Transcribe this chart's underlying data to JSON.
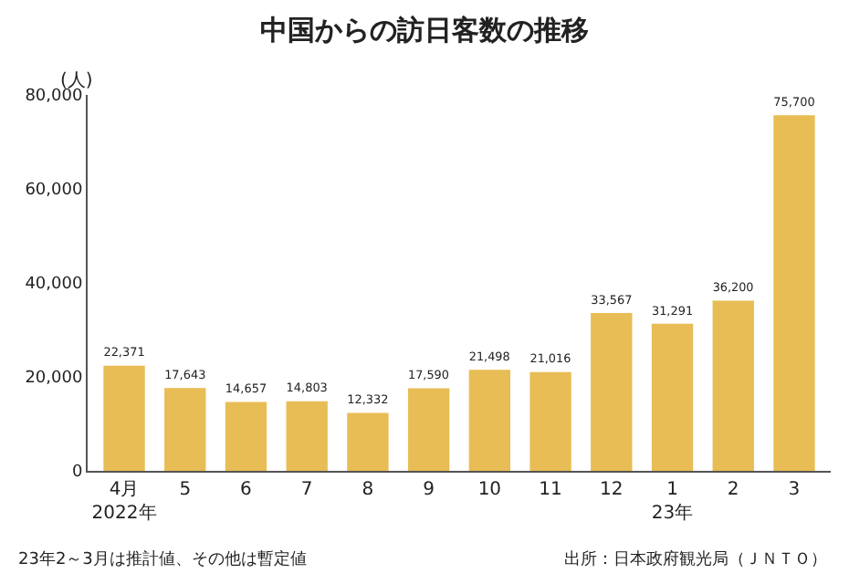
{
  "chart_data": {
    "type": "bar",
    "title": "中国からの訪日客数の推移",
    "ylabel": "(人)",
    "categories": [
      "4月\n2022年",
      "5",
      "6",
      "7",
      "8",
      "9",
      "10",
      "11",
      "12",
      "1\n23年",
      "2",
      "3"
    ],
    "values": [
      22371,
      17643,
      14657,
      14803,
      12332,
      17590,
      21498,
      21016,
      33567,
      31291,
      36200,
      75700
    ],
    "color": "#e9bd55",
    "ylim": [
      0,
      80000
    ],
    "yticks": [
      0,
      {
        "value": 20000,
        "label": "20,000"
      },
      {
        "value": 40000,
        "label": "40,000"
      },
      {
        "value": 60000,
        "label": "60,000"
      },
      {
        "value": 80000,
        "label": "80,000"
      }
    ],
    "value_labels": [
      "22,371",
      "17,643",
      "14,657",
      "14,803",
      "12,332",
      "17,590",
      "21,498",
      "21,016",
      "33,567",
      "31,291",
      "36,200",
      "75,700"
    ],
    "annotations": [
      "23年2～3月は推計値、その他は暫定値",
      "出所：日本政府観光局（ＪＮＴＯ）"
    ]
  }
}
